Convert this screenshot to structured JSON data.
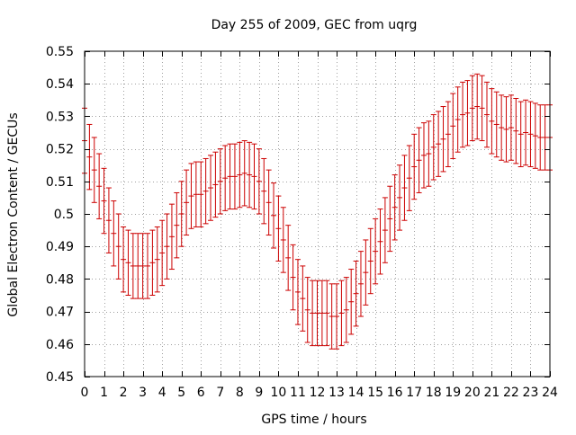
{
  "chart_data": {
    "type": "errorbar",
    "title": "Day 255 of 2009, GEC from uqrg",
    "xlabel": "GPS time / hours",
    "ylabel": "Global Electron Content / GECUs",
    "xlim": [
      0,
      24
    ],
    "ylim": [
      0.45,
      0.55
    ],
    "grid": true,
    "legend": "none",
    "xticks": [
      0,
      1,
      2,
      3,
      4,
      5,
      6,
      7,
      8,
      9,
      10,
      11,
      12,
      13,
      14,
      15,
      16,
      17,
      18,
      19,
      20,
      21,
      22,
      23,
      24
    ],
    "yticks": [
      "0.45",
      "0.46",
      "0.47",
      "0.48",
      "0.49",
      "0.5",
      "0.51",
      "0.52",
      "0.53",
      "0.54",
      "0.55"
    ],
    "series": [
      {
        "name": "GEC",
        "color": "#cc0000",
        "error": 0.01,
        "x": [
          0,
          0.25,
          0.5,
          0.75,
          1,
          1.25,
          1.5,
          1.75,
          2,
          2.25,
          2.5,
          2.75,
          3,
          3.25,
          3.5,
          3.75,
          4,
          4.25,
          4.5,
          4.75,
          5,
          5.25,
          5.5,
          5.75,
          6,
          6.25,
          6.5,
          6.75,
          7,
          7.25,
          7.5,
          7.75,
          8,
          8.25,
          8.5,
          8.75,
          9,
          9.25,
          9.5,
          9.75,
          10,
          10.25,
          10.5,
          10.75,
          11,
          11.25,
          11.5,
          11.75,
          12,
          12.25,
          12.5,
          12.75,
          13,
          13.25,
          13.5,
          13.75,
          14,
          14.25,
          14.5,
          14.75,
          15,
          15.25,
          15.5,
          15.75,
          16,
          16.25,
          16.5,
          16.75,
          17,
          17.25,
          17.5,
          17.75,
          18,
          18.25,
          18.5,
          18.75,
          19,
          19.25,
          19.5,
          19.75,
          20,
          20.25,
          20.5,
          20.75,
          21,
          21.25,
          21.5,
          21.75,
          22,
          22.25,
          22.5,
          22.75,
          23,
          23.25,
          23.5,
          23.75,
          24
        ],
        "y": [
          0.5225,
          0.5175,
          0.5135,
          0.5085,
          0.504,
          0.498,
          0.494,
          0.49,
          0.486,
          0.485,
          0.484,
          0.484,
          0.484,
          0.484,
          0.485,
          0.486,
          0.488,
          0.49,
          0.493,
          0.4965,
          0.5,
          0.5035,
          0.5055,
          0.506,
          0.506,
          0.507,
          0.508,
          0.509,
          0.51,
          0.511,
          0.5115,
          0.5115,
          0.512,
          0.5125,
          0.512,
          0.5115,
          0.51,
          0.507,
          0.5035,
          0.4995,
          0.4955,
          0.492,
          0.4865,
          0.4805,
          0.476,
          0.474,
          0.4705,
          0.4695,
          0.4695,
          0.4695,
          0.4695,
          0.4685,
          0.4685,
          0.4695,
          0.4705,
          0.473,
          0.4755,
          0.4785,
          0.482,
          0.4855,
          0.4885,
          0.4915,
          0.495,
          0.4985,
          0.502,
          0.505,
          0.508,
          0.511,
          0.5145,
          0.5165,
          0.518,
          0.5185,
          0.5205,
          0.5215,
          0.523,
          0.5245,
          0.527,
          0.529,
          0.5305,
          0.531,
          0.5325,
          0.533,
          0.5325,
          0.5305,
          0.5285,
          0.5275,
          0.5265,
          0.526,
          0.5265,
          0.5255,
          0.5245,
          0.525,
          0.5245,
          0.524,
          0.5235,
          0.5235,
          0.5235
        ]
      }
    ]
  }
}
